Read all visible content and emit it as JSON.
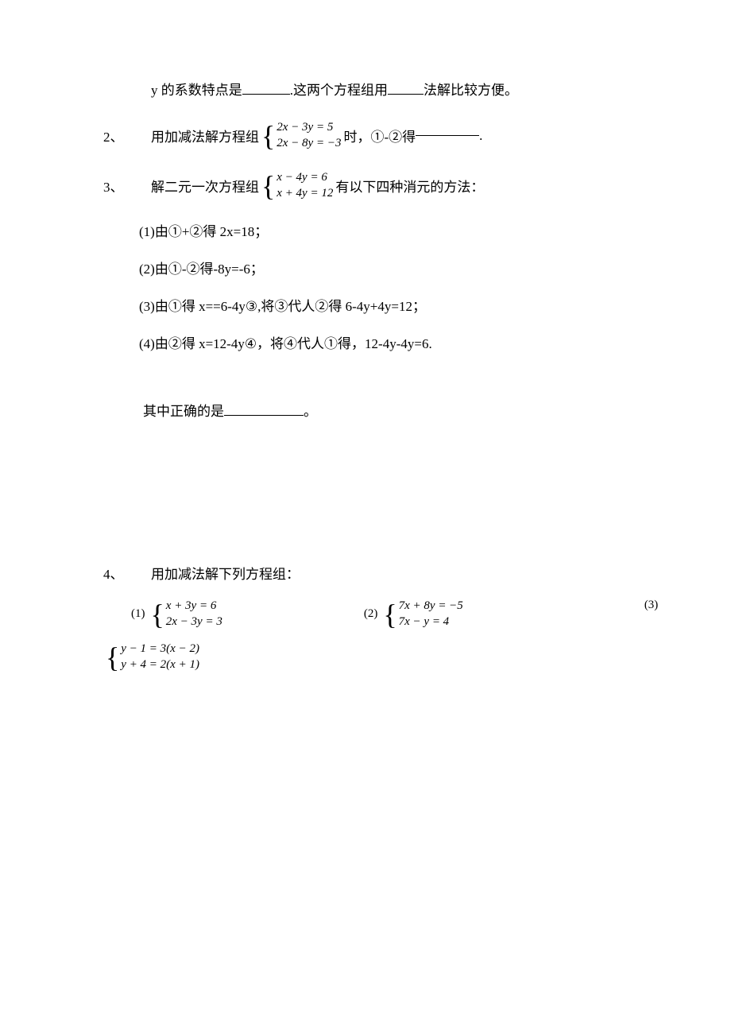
{
  "colors": {
    "background": "#ffffff",
    "text": "#000000",
    "blank_border": "#000000"
  },
  "typography": {
    "body_fontsize": 17,
    "equation_fontsize": 15,
    "brace_fontsize": 36,
    "family": "SimSun / 宋体"
  },
  "line1": {
    "prefix": "y 的系数特点是",
    "mid": ".这两个方程组用",
    "suffix": "法解比较方便。"
  },
  "problem2": {
    "num": "2、",
    "text_before": "用加减法解方程组",
    "eq1": "2x − 3y = 5",
    "eq2": "2x − 8y = −3",
    "text_after1": "时，①-②得",
    "text_after2": "."
  },
  "problem3": {
    "num": "3、",
    "text_before": "解二元一次方程组",
    "eq1": "x − 4y = 6",
    "eq2": "x + 4y = 12",
    "text_after": "有以下四种消元的方法：",
    "sub1": "(1)由①+②得 2x=18；",
    "sub2": "(2)由①-②得-8y=-6；",
    "sub3": "(3)由①得 x==6-4y③,将③代人②得 6-4y+4y=12；",
    "sub4": "(4)由②得 x=12-4y④，将④代人①得，12-4y-4y=6.",
    "correct_before": "其中正确的是",
    "correct_after": "。"
  },
  "problem4": {
    "num": "4、",
    "title": "用加减法解下列方程组：",
    "eq1_label": "(1)",
    "eq1_line1": "x + 3y = 6",
    "eq1_line2": "2x − 3y = 3",
    "eq2_label": "(2)",
    "eq2_line1": "7x + 8y = −5",
    "eq2_line2": "7x − y = 4",
    "eq3_label": "(3)",
    "eq3_line1": "y − 1 = 3(x − 2)",
    "eq3_line2": "y + 4 = 2(x + 1)"
  }
}
